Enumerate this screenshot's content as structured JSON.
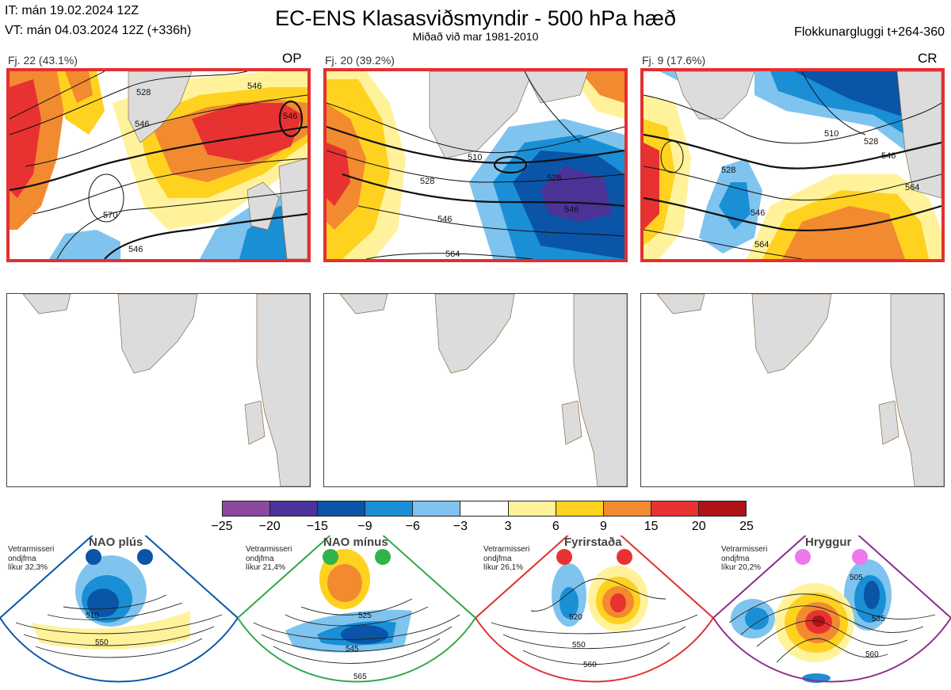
{
  "header": {
    "it": "IT: mán 19.02.2024 12Z",
    "vt": "VT: mán 04.03.2024 12Z  (+336h)",
    "title": "EC-ENS Klasasviðsmyndir - 500 hPa hæð",
    "subtitle": "Miðað við mar 1981-2010",
    "window": "Flokkunargluggi t+264-360"
  },
  "clusters": [
    {
      "label": "Fj. 22 (43.1%)",
      "tag": "OP",
      "contours": [
        "528",
        "546",
        "546",
        "546",
        "570",
        "546"
      ]
    },
    {
      "label": "Fj. 20 (39.2%)",
      "tag": "",
      "contours": [
        "510",
        "528",
        "528",
        "546",
        "546",
        "564"
      ]
    },
    {
      "label": "Fj. 9 (17.6%)",
      "tag": "CR",
      "contours": [
        "510",
        "528",
        "546",
        "528",
        "564",
        "546",
        "564"
      ]
    }
  ],
  "colorbar": {
    "ticks": [
      "−25",
      "−20",
      "−15",
      "−9",
      "−6",
      "−3",
      "3",
      "6",
      "9",
      "15",
      "20",
      "25"
    ],
    "colors": [
      "#8b4a9e",
      "#4b3398",
      "#0a55a8",
      "#1a8fd6",
      "#7fc4ee",
      "#ffffff",
      "#fff29a",
      "#ffd21f",
      "#f28a30",
      "#e83232",
      "#b01218"
    ]
  },
  "regimes": [
    {
      "name": "NAO plús",
      "info": [
        "Vetrarmisseri",
        "ondjfma",
        "líkur 32,3%"
      ],
      "border": "#0a55a8",
      "dots": "#0a55a8",
      "contours": [
        "510",
        "550"
      ]
    },
    {
      "name": "NAO mínus",
      "info": [
        "Vetrarmisseri",
        "ondjfma",
        "líkur 21,4%"
      ],
      "border": "#2fa84a",
      "dots": "#2fb34a",
      "contours": [
        "525",
        "545",
        "565"
      ]
    },
    {
      "name": "Fyrirstaða",
      "info": [
        "Vetrarmisseri",
        "ondjfma",
        "líkur 26,1%"
      ],
      "border": "#e03030",
      "dots": "#e83232",
      "contours": [
        "520",
        "550",
        "560"
      ]
    },
    {
      "name": "Hryggur",
      "info": [
        "Vetrarmisseri",
        "ondjfma",
        "líkur 20,2%"
      ],
      "border": "#8a2f8a",
      "dots": "#ee77ee",
      "contours": [
        "505",
        "535",
        "560"
      ]
    }
  ]
}
